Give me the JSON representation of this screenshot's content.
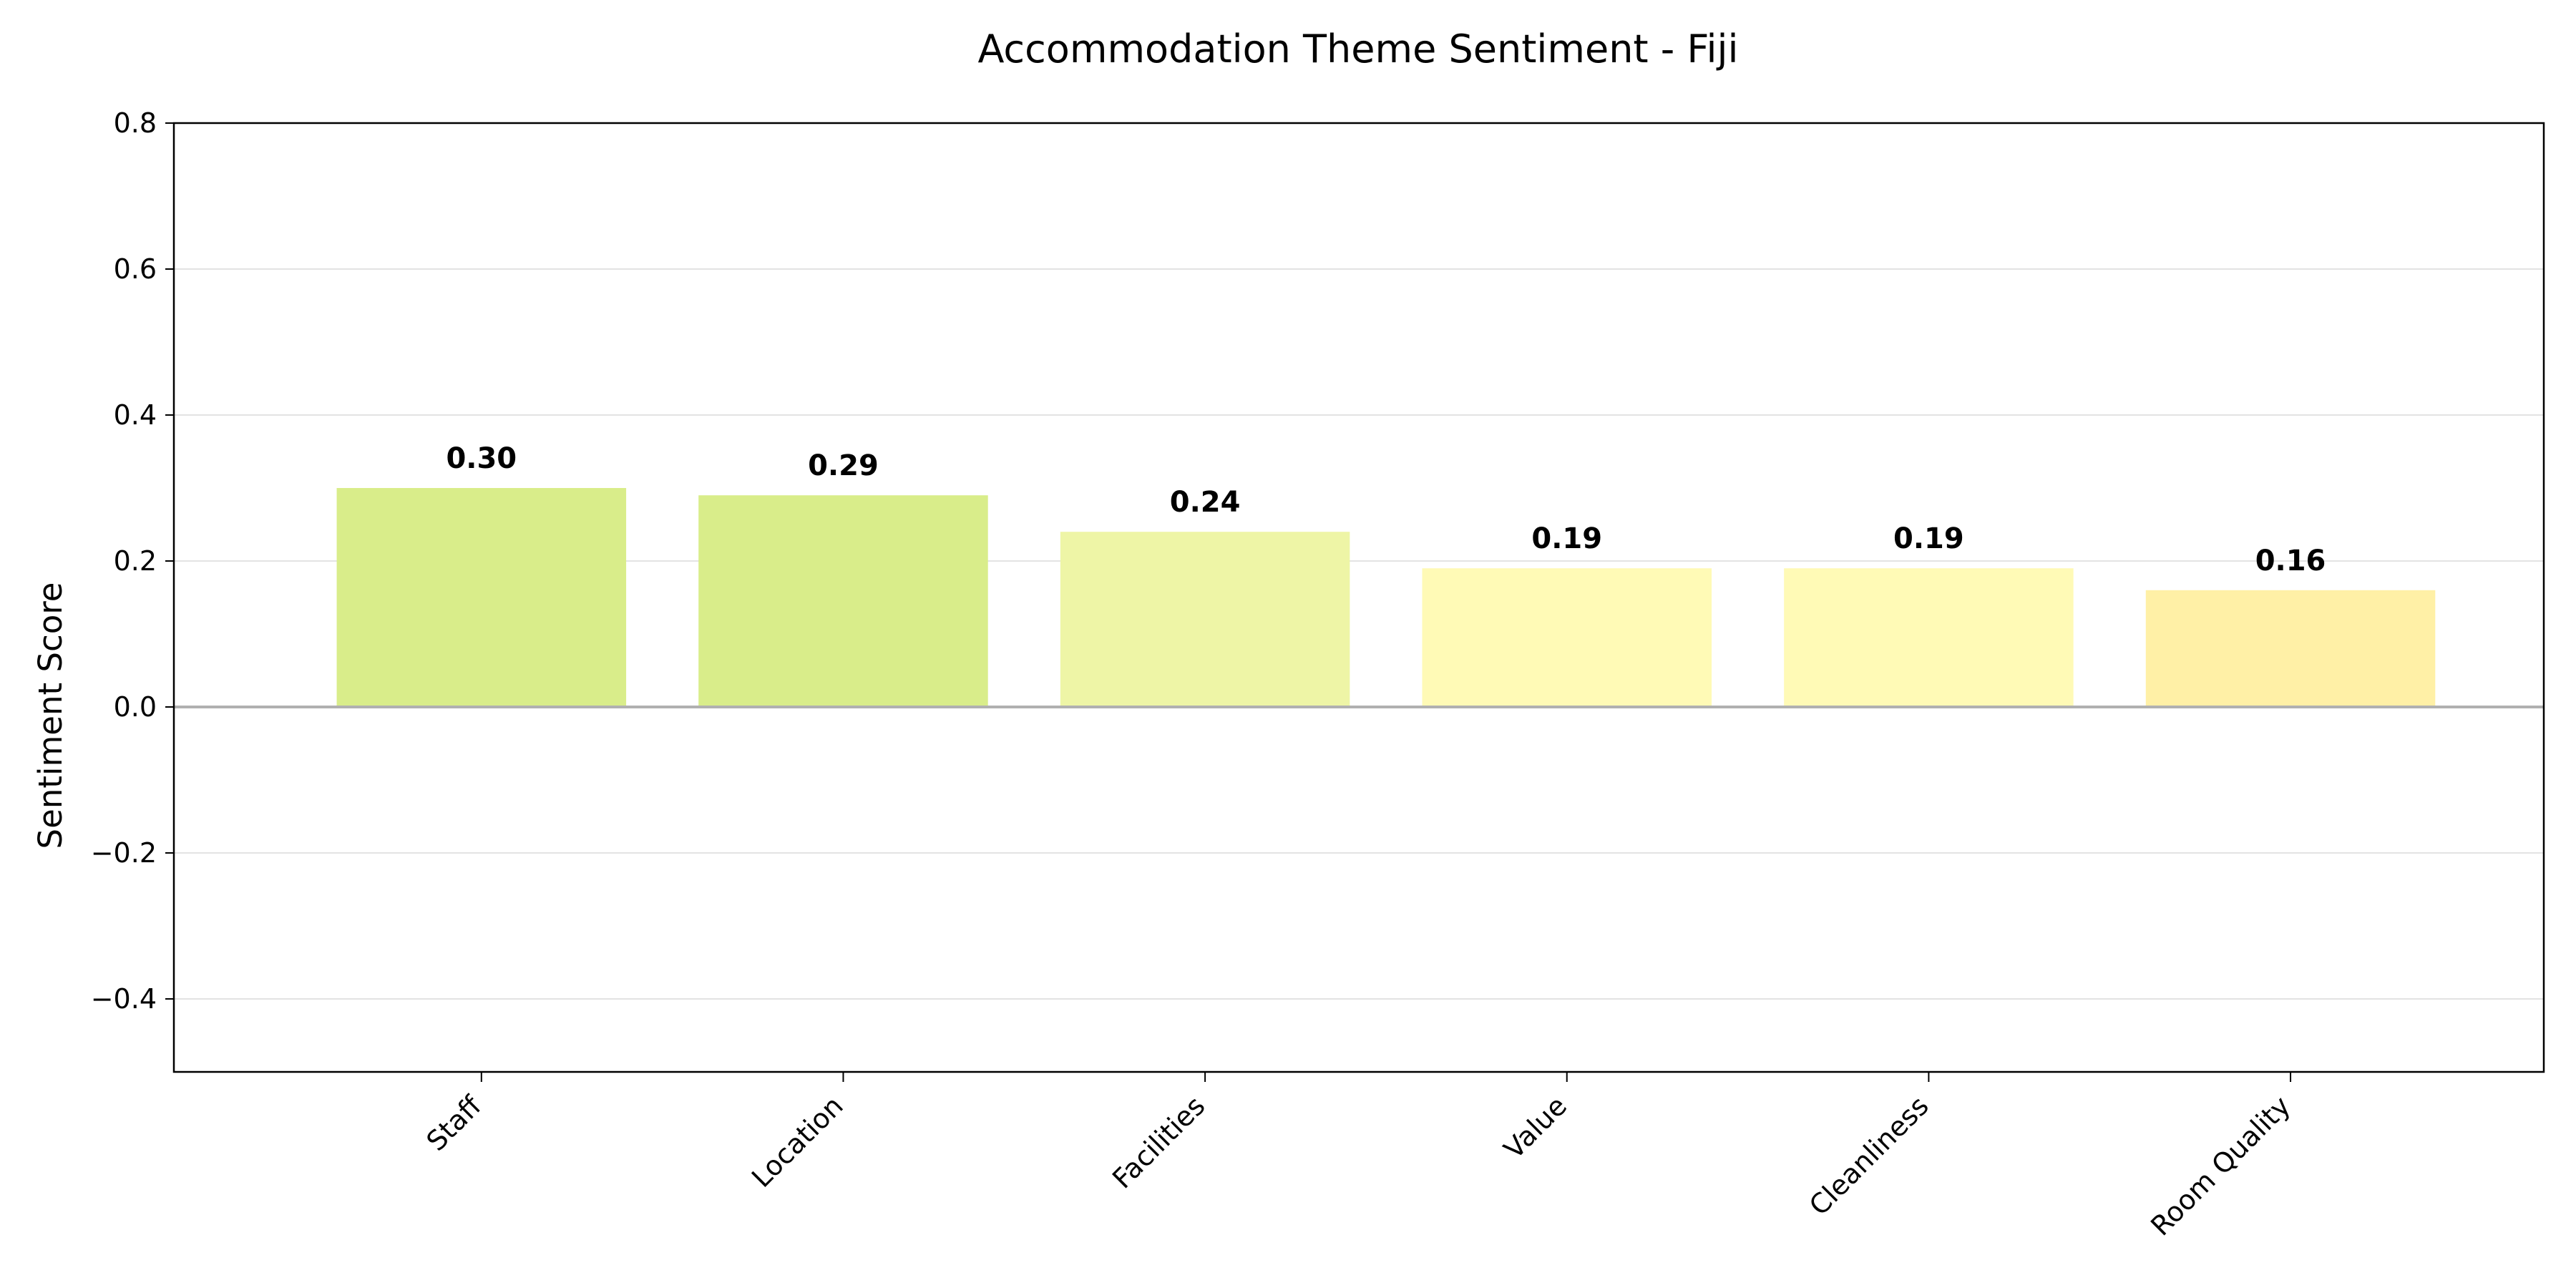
{
  "chart_data": {
    "type": "bar",
    "title": "Accommodation Theme Sentiment - Fiji",
    "xlabel": "",
    "ylabel": "Sentiment Score",
    "categories": [
      "Staff",
      "Location",
      "Facilities",
      "Value",
      "Cleanliness",
      "Room Quality"
    ],
    "values": [
      0.3,
      0.29,
      0.24,
      0.19,
      0.19,
      0.16
    ],
    "value_labels": [
      "0.30",
      "0.29",
      "0.24",
      "0.19",
      "0.19",
      "0.16"
    ],
    "colors": [
      "#d9ed8a",
      "#d9ed8a",
      "#eef5a6",
      "#fffab6",
      "#fffab6",
      "#fff0a6"
    ],
    "ylim": [
      -0.5,
      0.8
    ],
    "yticks": [
      -0.4,
      -0.2,
      0.0,
      0.2,
      0.4,
      0.6,
      0.8
    ],
    "ytick_labels": [
      "−0.4",
      "−0.2",
      "0.0",
      "0.2",
      "0.4",
      "0.6",
      "0.8"
    ],
    "grid": true,
    "zero_line": true,
    "legend": "none"
  }
}
